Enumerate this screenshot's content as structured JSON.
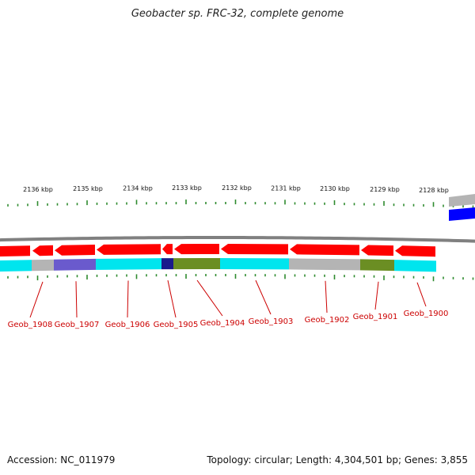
{
  "header": {
    "title": "Geobacter sp. FRC-32, complete genome"
  },
  "footer": {
    "accession": "Accession: NC_011979",
    "stats": "Topology: circular; Length: 4,304,501 bp; Genes: 3,855"
  },
  "scale": {
    "unit": "kbp",
    "labels": [
      "2136 kbp",
      "2135 kbp",
      "2134 kbp",
      "2133 kbp",
      "2132 kbp",
      "2131 kbp",
      "2130 kbp",
      "2129 kbp",
      "2128 kbp"
    ]
  },
  "genes": [
    {
      "name": "Geob_1908",
      "strand": "-",
      "cog_color": "#b4b4b4"
    },
    {
      "name": "Geob_1907",
      "strand": "-",
      "cog_color": "#6a5acd"
    },
    {
      "name": "Geob_1906",
      "strand": "-",
      "cog_color": "#00e5ee"
    },
    {
      "name": "Geob_1905",
      "strand": "-",
      "cog_color": "#1a1a8c"
    },
    {
      "name": "Geob_1904",
      "strand": "-",
      "cog_color": "#6b8e23"
    },
    {
      "name": "Geob_1903",
      "strand": "-",
      "cog_color": "#00e5ee"
    },
    {
      "name": "Geob_1902",
      "strand": "-",
      "cog_color": "#b4b4b4"
    },
    {
      "name": "Geob_1901",
      "strand": "-",
      "cog_color": "#6b8e23"
    },
    {
      "name": "Geob_1900",
      "strand": "-",
      "cog_color": "#00e5ee"
    }
  ],
  "colors": {
    "cds": "#ff0000",
    "backbone": "#808080",
    "tick": "#2e8b2e",
    "label": "#cc0000",
    "plus_strand": "#0000ff",
    "plus_strand_cog": "#b4b4b4"
  }
}
